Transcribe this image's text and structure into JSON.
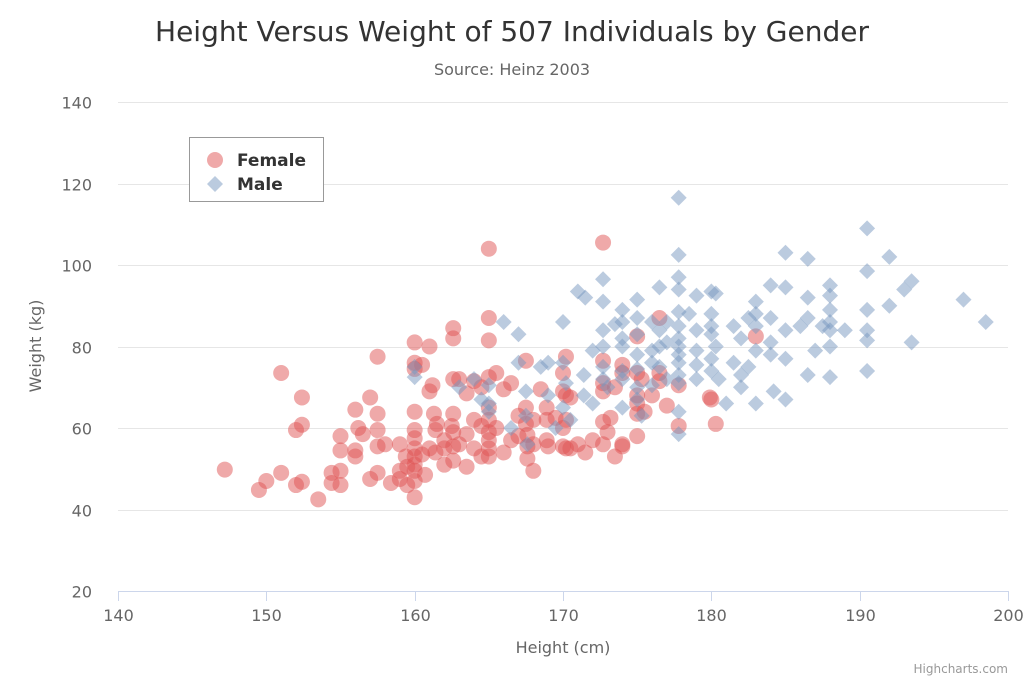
{
  "chart_data": {
    "type": "scatter",
    "title": "Height Versus Weight of 507 Individuals by Gender",
    "subtitle": "Source: Heinz 2003",
    "xlabel": "Height (cm)",
    "ylabel": "Weight (kg)",
    "xlim": [
      140,
      200
    ],
    "ylim": [
      20,
      140
    ],
    "xticks": [
      140,
      150,
      160,
      170,
      180,
      190,
      200
    ],
    "yticks": [
      20,
      40,
      60,
      80,
      100,
      120,
      140
    ],
    "grid": true,
    "legend_placement": "top-left",
    "credits": "Highcharts.com",
    "series": [
      {
        "name": "Female",
        "color": "#df5353",
        "marker": "circle",
        "points": [
          [
            147.2,
            49.8
          ],
          [
            149.5,
            44.8
          ],
          [
            150,
            47
          ],
          [
            151,
            73.5
          ],
          [
            151,
            49
          ],
          [
            152,
            59.5
          ],
          [
            152,
            46
          ],
          [
            152.4,
            67.5
          ],
          [
            152.4,
            60.8
          ],
          [
            152.4,
            46.8
          ],
          [
            153.5,
            42.5
          ],
          [
            154.4,
            46.5
          ],
          [
            154.4,
            49
          ],
          [
            155,
            58
          ],
          [
            155,
            54.5
          ],
          [
            155,
            49.5
          ],
          [
            155,
            46
          ],
          [
            156,
            64.5
          ],
          [
            156,
            54.5
          ],
          [
            156,
            53
          ],
          [
            156.2,
            60
          ],
          [
            156.5,
            58.5
          ],
          [
            157,
            67.5
          ],
          [
            157,
            47.5
          ],
          [
            157.5,
            77.5
          ],
          [
            157.5,
            63.5
          ],
          [
            157.5,
            59.5
          ],
          [
            157.5,
            55.5
          ],
          [
            157.5,
            49
          ],
          [
            158,
            56
          ],
          [
            158.4,
            46.5
          ],
          [
            159,
            56
          ],
          [
            159,
            49.5
          ],
          [
            159,
            47.5
          ],
          [
            159.4,
            53
          ],
          [
            159.5,
            50.5
          ],
          [
            159.5,
            46
          ],
          [
            160,
            81
          ],
          [
            160,
            76
          ],
          [
            160,
            74.5
          ],
          [
            160,
            64
          ],
          [
            160,
            59.5
          ],
          [
            160,
            57.5
          ],
          [
            160,
            55
          ],
          [
            160,
            53
          ],
          [
            160,
            51
          ],
          [
            160,
            49.5
          ],
          [
            160,
            47
          ],
          [
            160,
            43
          ],
          [
            160.5,
            75.5
          ],
          [
            160.5,
            53.5
          ],
          [
            160.7,
            48.5
          ],
          [
            161,
            80
          ],
          [
            161,
            69
          ],
          [
            161,
            55
          ],
          [
            161.2,
            70.5
          ],
          [
            161.3,
            63.5
          ],
          [
            161.4,
            59.5
          ],
          [
            161.4,
            54
          ],
          [
            161.5,
            61
          ],
          [
            162,
            57
          ],
          [
            162,
            55
          ],
          [
            162,
            51
          ],
          [
            162.5,
            60.5
          ],
          [
            162.6,
            84.5
          ],
          [
            162.6,
            82
          ],
          [
            162.6,
            72
          ],
          [
            162.6,
            63.5
          ],
          [
            162.6,
            59
          ],
          [
            162.6,
            55.5
          ],
          [
            162.6,
            52
          ],
          [
            163,
            72
          ],
          [
            163,
            56
          ],
          [
            163.5,
            68.5
          ],
          [
            163.5,
            58.5
          ],
          [
            163.5,
            50.5
          ],
          [
            164,
            71.5
          ],
          [
            164,
            62
          ],
          [
            164,
            55
          ],
          [
            164.5,
            70
          ],
          [
            164.5,
            60.5
          ],
          [
            164.5,
            53
          ],
          [
            165,
            104
          ],
          [
            165,
            87
          ],
          [
            165,
            81.5
          ],
          [
            165,
            72.5
          ],
          [
            165,
            65
          ],
          [
            165,
            62
          ],
          [
            165,
            59
          ],
          [
            165,
            57
          ],
          [
            165,
            55
          ],
          [
            165,
            53
          ],
          [
            165.5,
            60
          ],
          [
            165.5,
            73.5
          ],
          [
            166,
            54
          ],
          [
            166,
            69.5
          ],
          [
            166.5,
            71
          ],
          [
            166.5,
            57
          ],
          [
            167,
            63
          ],
          [
            167,
            58
          ],
          [
            167.5,
            76.5
          ],
          [
            167.5,
            65
          ],
          [
            167.5,
            61
          ],
          [
            167.6,
            58.3
          ],
          [
            167.6,
            55.5
          ],
          [
            167.6,
            52.5
          ],
          [
            168,
            62
          ],
          [
            168,
            49.5
          ],
          [
            168,
            56
          ],
          [
            168.5,
            69.5
          ],
          [
            168.9,
            65
          ],
          [
            168.9,
            62
          ],
          [
            168.9,
            57
          ],
          [
            169,
            55.5
          ],
          [
            169.5,
            62.5
          ],
          [
            170,
            73.5
          ],
          [
            170,
            69
          ],
          [
            170,
            60
          ],
          [
            170,
            55.5
          ],
          [
            170.2,
            77.5
          ],
          [
            170.2,
            62
          ],
          [
            170.2,
            55
          ],
          [
            170.2,
            68
          ],
          [
            170.5,
            67.5
          ],
          [
            170.5,
            55
          ],
          [
            171,
            56
          ],
          [
            171.5,
            54
          ],
          [
            172,
            57
          ],
          [
            172.7,
            105.5
          ],
          [
            172.7,
            76.5
          ],
          [
            172.7,
            71
          ],
          [
            172.7,
            69
          ],
          [
            172.7,
            61.5
          ],
          [
            172.7,
            56
          ],
          [
            173,
            59
          ],
          [
            173.2,
            62.5
          ],
          [
            173.5,
            53
          ],
          [
            173.5,
            70
          ],
          [
            174,
            73.5
          ],
          [
            174,
            75.5
          ],
          [
            174,
            55.5
          ],
          [
            174,
            56
          ],
          [
            175,
            82.5
          ],
          [
            175,
            73.5
          ],
          [
            175,
            68
          ],
          [
            175,
            66
          ],
          [
            175,
            63.5
          ],
          [
            175,
            58
          ],
          [
            175.3,
            72
          ],
          [
            175.5,
            64
          ],
          [
            176,
            68
          ],
          [
            176.5,
            87
          ],
          [
            176.5,
            73.5
          ],
          [
            176.5,
            71.5
          ],
          [
            177,
            65.5
          ],
          [
            177.8,
            70.5
          ],
          [
            177.8,
            60.5
          ],
          [
            179.9,
            67.5
          ],
          [
            180,
            67
          ],
          [
            180.3,
            61
          ],
          [
            183,
            82.5
          ]
        ]
      },
      {
        "name": "Male",
        "color": "#7798bf",
        "marker": "diamond",
        "points": [
          [
            160,
            72.5
          ],
          [
            160,
            75
          ],
          [
            163,
            70
          ],
          [
            164,
            72
          ],
          [
            164.5,
            67
          ],
          [
            165,
            70.5
          ],
          [
            165,
            66
          ],
          [
            165,
            64
          ],
          [
            166,
            86
          ],
          [
            166.5,
            60
          ],
          [
            167,
            83
          ],
          [
            167,
            76
          ],
          [
            167.5,
            69
          ],
          [
            167.5,
            63
          ],
          [
            167.6,
            56
          ],
          [
            168.5,
            75
          ],
          [
            169,
            76
          ],
          [
            169,
            68
          ],
          [
            169.5,
            60
          ],
          [
            170,
            86
          ],
          [
            170,
            76
          ],
          [
            170,
            65
          ],
          [
            170.2,
            71
          ],
          [
            170.5,
            62
          ],
          [
            171,
            93.5
          ],
          [
            171.4,
            73
          ],
          [
            171.4,
            68
          ],
          [
            171.5,
            92
          ],
          [
            172,
            79
          ],
          [
            172,
            66
          ],
          [
            172.7,
            96.5
          ],
          [
            172.7,
            91
          ],
          [
            172.7,
            84
          ],
          [
            172.7,
            80
          ],
          [
            172.7,
            75
          ],
          [
            172.7,
            72
          ],
          [
            173,
            70
          ],
          [
            173.5,
            85.5
          ],
          [
            174,
            89
          ],
          [
            174,
            86
          ],
          [
            174,
            82
          ],
          [
            174,
            80
          ],
          [
            174,
            74
          ],
          [
            174,
            72
          ],
          [
            174,
            65
          ],
          [
            175,
            91.5
          ],
          [
            175,
            87
          ],
          [
            175,
            83
          ],
          [
            175,
            78
          ],
          [
            175,
            74.5
          ],
          [
            175,
            70
          ],
          [
            175,
            67
          ],
          [
            175.3,
            63
          ],
          [
            176,
            86
          ],
          [
            176,
            79
          ],
          [
            176,
            76
          ],
          [
            176,
            70.5
          ],
          [
            176.5,
            94.5
          ],
          [
            176.5,
            84
          ],
          [
            176.5,
            80
          ],
          [
            176.5,
            75
          ],
          [
            177,
            86
          ],
          [
            177,
            81
          ],
          [
            177,
            72
          ],
          [
            177.8,
            116.5
          ],
          [
            177.8,
            102.5
          ],
          [
            177.8,
            97
          ],
          [
            177.8,
            94
          ],
          [
            177.8,
            88.5
          ],
          [
            177.8,
            85
          ],
          [
            177.8,
            82
          ],
          [
            177.8,
            80
          ],
          [
            177.8,
            78
          ],
          [
            177.8,
            76
          ],
          [
            177.8,
            73
          ],
          [
            177.8,
            71
          ],
          [
            177.8,
            64
          ],
          [
            177.8,
            58.5
          ],
          [
            178.5,
            88
          ],
          [
            179,
            92.5
          ],
          [
            179,
            84
          ],
          [
            179,
            79
          ],
          [
            179,
            75.5
          ],
          [
            179,
            72
          ],
          [
            180,
            93.5
          ],
          [
            180,
            88
          ],
          [
            180,
            85
          ],
          [
            180,
            83
          ],
          [
            180,
            77
          ],
          [
            180,
            74
          ],
          [
            180.3,
            93
          ],
          [
            180.3,
            80
          ],
          [
            180.5,
            72
          ],
          [
            181,
            66
          ],
          [
            181.5,
            85
          ],
          [
            181.5,
            76
          ],
          [
            182,
            70
          ],
          [
            182,
            82
          ],
          [
            182,
            73
          ],
          [
            182.5,
            87
          ],
          [
            182.5,
            75
          ],
          [
            183,
            91
          ],
          [
            183,
            88
          ],
          [
            183,
            85
          ],
          [
            183,
            79
          ],
          [
            183,
            66
          ],
          [
            184,
            95
          ],
          [
            184,
            87
          ],
          [
            184,
            81
          ],
          [
            184,
            78
          ],
          [
            184.2,
            69
          ],
          [
            185,
            103
          ],
          [
            185,
            94.5
          ],
          [
            185,
            84
          ],
          [
            185,
            77
          ],
          [
            185,
            67
          ],
          [
            186,
            85
          ],
          [
            186.5,
            101.5
          ],
          [
            186.5,
            92
          ],
          [
            186.5,
            87
          ],
          [
            186.5,
            73
          ],
          [
            187,
            79
          ],
          [
            187.5,
            85
          ],
          [
            188,
            95
          ],
          [
            188,
            92.5
          ],
          [
            188,
            89
          ],
          [
            188,
            86
          ],
          [
            188,
            84
          ],
          [
            188,
            80
          ],
          [
            188,
            72.5
          ],
          [
            189,
            84
          ],
          [
            190.5,
            109
          ],
          [
            190.5,
            98.5
          ],
          [
            190.5,
            89
          ],
          [
            190.5,
            84
          ],
          [
            190.5,
            81.5
          ],
          [
            190.5,
            74
          ],
          [
            192,
            102
          ],
          [
            192,
            90
          ],
          [
            193,
            94
          ],
          [
            193.5,
            96
          ],
          [
            193.5,
            81
          ],
          [
            197,
            91.5
          ],
          [
            198.5,
            86
          ]
        ]
      }
    ]
  }
}
